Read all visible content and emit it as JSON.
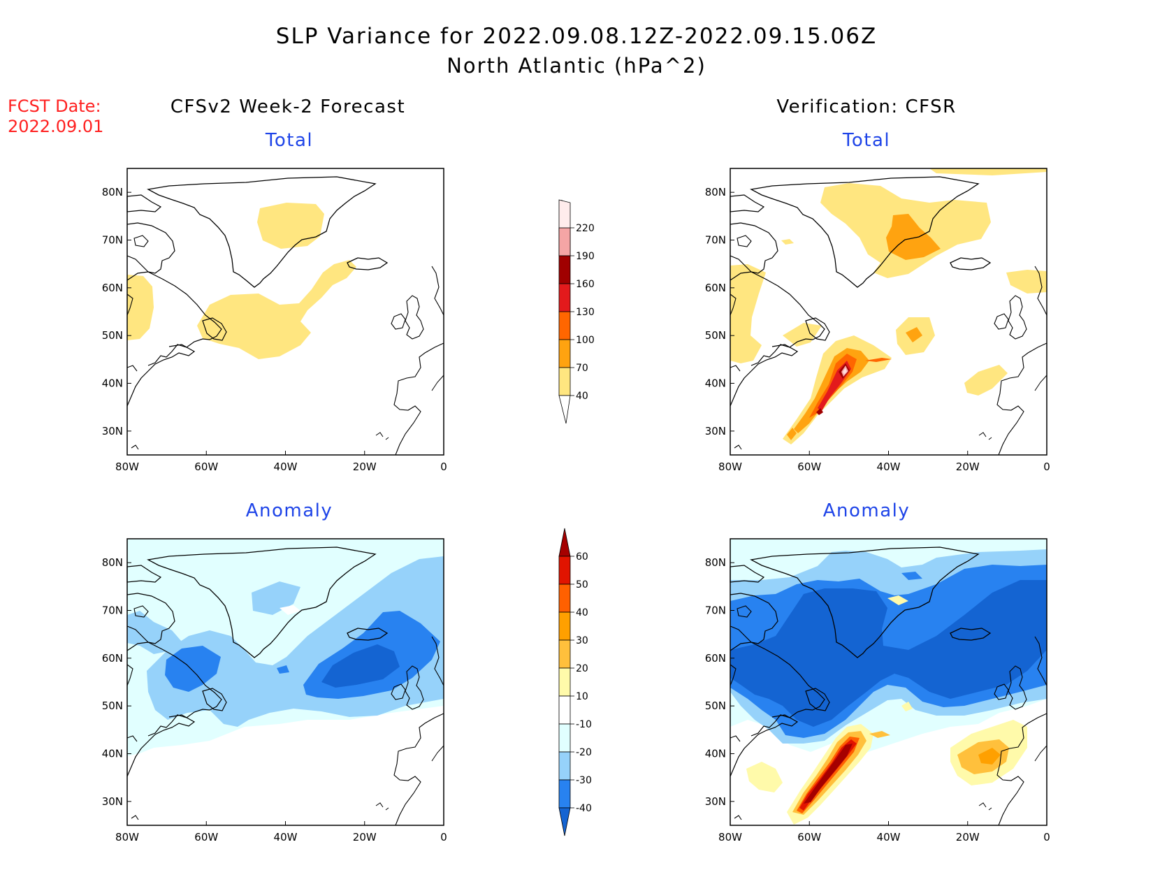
{
  "header": {
    "title_line1": "SLP Variance for 2022.09.08.12Z-2022.09.15.06Z",
    "title_line2": "North Atlantic (hPa^2)",
    "fcst_label_line1": "FCST Date:",
    "fcst_label_line2": "2022.09.01"
  },
  "columns": {
    "left": "CFSv2 Week-2 Forecast",
    "right": "Verification: CFSR"
  },
  "panels": {
    "total_label": "Total",
    "anomaly_label": "Anomaly"
  },
  "axes": {
    "lat_ticks": [
      "80N",
      "70N",
      "60N",
      "50N",
      "40N",
      "30N"
    ],
    "lon_ticks": [
      "80W",
      "60W",
      "40W",
      "20W",
      "0"
    ]
  },
  "chart_data": [
    {
      "type": "heatmap",
      "panel": "Total",
      "column": "CFSv2 Week-2 Forecast",
      "xlim": [
        -80,
        0
      ],
      "ylim": [
        25,
        85
      ],
      "colorbar": {
        "levels": [
          40,
          70,
          100,
          130,
          160,
          190,
          220
        ],
        "colors": [
          "#ffe680",
          "#ffa310",
          "#ff6600",
          "#e31a1c",
          "#a00000",
          "#f5a5a5",
          "#ffdcdc"
        ]
      },
      "regions": [
        {
          "name": "labrador-sea-blob",
          "level": 40,
          "approx_center": [
            -82,
            55
          ]
        },
        {
          "name": "greenland-blob",
          "level": 40,
          "approx_center": [
            -38,
            73
          ]
        },
        {
          "name": "newfoundland-iceland-band",
          "level": 40,
          "approx_center": [
            -40,
            52
          ]
        }
      ]
    },
    {
      "type": "heatmap",
      "panel": "Total",
      "column": "Verification: CFSR",
      "xlim": [
        -80,
        0
      ],
      "ylim": [
        25,
        85
      ],
      "colorbar": {
        "levels": [
          40,
          70,
          100,
          130,
          160,
          190,
          220
        ],
        "colors": [
          "#ffe680",
          "#ffa310",
          "#ff6600",
          "#e31a1c",
          "#a00000",
          "#f5a5a5",
          "#ffdcdc"
        ]
      },
      "regions": [
        {
          "name": "greenland-sea-max",
          "level": 70,
          "approx_center": [
            -33,
            70
          ]
        },
        {
          "name": "hurricane-track-max",
          "level": 190,
          "approx_center": [
            -52,
            43
          ]
        },
        {
          "name": "mid-atlantic-spot",
          "level": 70,
          "approx_center": [
            -33,
            50
          ]
        }
      ]
    },
    {
      "type": "heatmap",
      "panel": "Anomaly",
      "column": "CFSv2 Week-2 Forecast",
      "xlim": [
        -80,
        0
      ],
      "ylim": [
        25,
        85
      ],
      "colorbar": {
        "levels": [
          -40,
          -30,
          -20,
          -10,
          10,
          20,
          30,
          40,
          50,
          60
        ],
        "colors": [
          "#1464d2",
          "#2882f0",
          "#96d2fa",
          "#e1ffff",
          "#ffffff",
          "#fffaaa",
          "#ffc03c",
          "#ffa000",
          "#ff6000",
          "#e11400",
          "#a50000"
        ]
      },
      "regions": [
        {
          "name": "east-atlantic-min",
          "level": -40,
          "approx_center": [
            -22,
            58
          ]
        },
        {
          "name": "labrador-min",
          "level": -30,
          "approx_center": [
            -64,
            56
          ]
        }
      ]
    },
    {
      "type": "heatmap",
      "panel": "Anomaly",
      "column": "Verification: CFSR",
      "xlim": [
        -80,
        0
      ],
      "ylim": [
        25,
        85
      ],
      "colorbar": {
        "levels": [
          -40,
          -30,
          -20,
          -10,
          10,
          20,
          30,
          40,
          50,
          60
        ],
        "colors": [
          "#1464d2",
          "#2882f0",
          "#96d2fa",
          "#e1ffff",
          "#ffffff",
          "#fffaaa",
          "#ffc03c",
          "#ffa000",
          "#ff6000",
          "#e11400",
          "#a50000"
        ]
      },
      "regions": [
        {
          "name": "subpolar-band-min",
          "level": -40,
          "approx_center": [
            -40,
            60
          ]
        },
        {
          "name": "hurricane-track-max",
          "level": 60,
          "approx_center": [
            -58,
            38
          ]
        },
        {
          "name": "iberia-positive",
          "level": 30,
          "approx_center": [
            -13,
            40
          ]
        }
      ]
    }
  ],
  "colorbars": {
    "total": {
      "labels": [
        "220",
        "190",
        "160",
        "130",
        "100",
        "70",
        "40"
      ]
    },
    "anomaly": {
      "labels": [
        "60",
        "50",
        "40",
        "30",
        "20",
        "10",
        "-10",
        "-20",
        "-30",
        "-40"
      ]
    }
  }
}
